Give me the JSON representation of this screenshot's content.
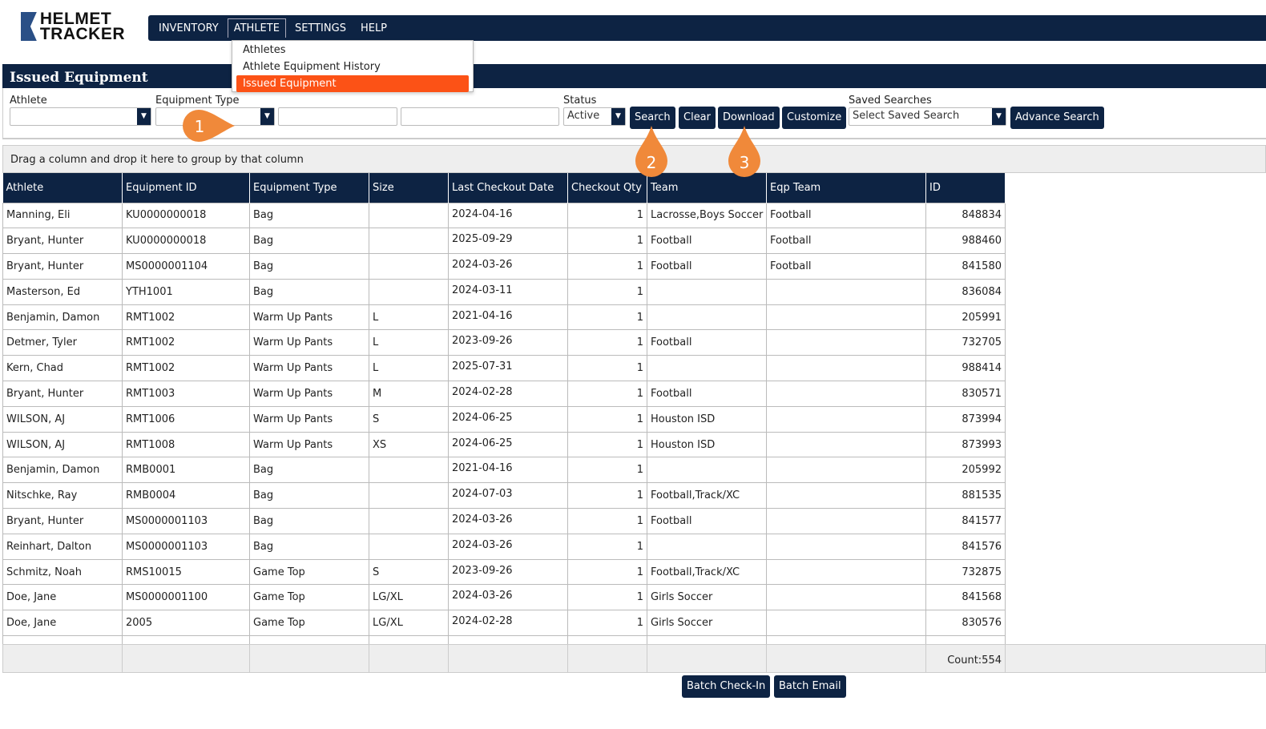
{
  "logo": {
    "line1": "HELMET",
    "line2": "TRACKER"
  },
  "nav": {
    "items": [
      "INVENTORY",
      "ATHLETE",
      "SETTINGS",
      "HELP"
    ],
    "active": "ATHLETE"
  },
  "menu": {
    "items": [
      "Athletes",
      "Athlete Equipment History",
      "Issued Equipment"
    ],
    "selected": "Issued Equipment"
  },
  "page": {
    "title": "Issued Equipment"
  },
  "filters": {
    "athlete_label": "Athlete",
    "equipment_type_label": "Equipment Type",
    "status_label": "Status",
    "status_value": "Active",
    "saved_label": "Saved Searches",
    "saved_value": "Select Saved Search"
  },
  "buttons": {
    "search": "Search",
    "clear": "Clear",
    "download": "Download",
    "customize": "Customize",
    "advance": "Advance Search",
    "batch_checkin": "Batch Check-In",
    "batch_email": "Batch Email"
  },
  "group_hint": "Drag a column and drop it here to group by that column",
  "table": {
    "columns": [
      "Athlete",
      "Equipment ID",
      "Equipment Type",
      "Size",
      "Last Checkout Date",
      "Checkout Qty",
      "Team",
      "Eqp Team",
      "ID"
    ],
    "rows": [
      [
        "Manning, Eli",
        "KU0000000018",
        "Bag",
        "",
        "2024-04-16",
        "1",
        "Lacrosse,Boys Soccer",
        "Football",
        "848834"
      ],
      [
        "Bryant, Hunter",
        "KU0000000018",
        "Bag",
        "",
        "2025-09-29",
        "1",
        "Football",
        "Football",
        "988460"
      ],
      [
        "Bryant, Hunter",
        "MS0000001104",
        "Bag",
        "",
        "2024-03-26",
        "1",
        "Football",
        "Football",
        "841580"
      ],
      [
        "Masterson, Ed",
        "YTH1001",
        "Bag",
        "",
        "2024-03-11",
        "1",
        "",
        "",
        "836084"
      ],
      [
        "Benjamin, Damon",
        "RMT1002",
        "Warm Up Pants",
        "L",
        "2021-04-16",
        "1",
        "",
        "",
        "205991"
      ],
      [
        "Detmer, Tyler",
        "RMT1002",
        "Warm Up Pants",
        "L",
        "2023-09-26",
        "1",
        "Football",
        "",
        "732705"
      ],
      [
        "Kern, Chad",
        "RMT1002",
        "Warm Up Pants",
        "L",
        "2025-07-31",
        "1",
        "",
        "",
        "988414"
      ],
      [
        "Bryant, Hunter",
        "RMT1003",
        "Warm Up Pants",
        "M",
        "2024-02-28",
        "1",
        "Football",
        "",
        "830571"
      ],
      [
        "WILSON, AJ",
        "RMT1006",
        "Warm Up Pants",
        "S",
        "2024-06-25",
        "1",
        "Houston ISD",
        "",
        "873994"
      ],
      [
        "WILSON, AJ",
        "RMT1008",
        "Warm Up Pants",
        "XS",
        "2024-06-25",
        "1",
        "Houston ISD",
        "",
        "873993"
      ],
      [
        "Benjamin, Damon",
        "RMB0001",
        "Bag",
        "",
        "2021-04-16",
        "1",
        "",
        "",
        "205992"
      ],
      [
        "Nitschke, Ray",
        "RMB0004",
        "Bag",
        "",
        "2024-07-03",
        "1",
        "Football,Track/XC",
        "",
        "881535"
      ],
      [
        "Bryant, Hunter",
        "MS0000001103",
        "Bag",
        "",
        "2024-03-26",
        "1",
        "Football",
        "",
        "841577"
      ],
      [
        "Reinhart, Dalton",
        "MS0000001103",
        "Bag",
        "",
        "2024-03-26",
        "1",
        "",
        "",
        "841576"
      ],
      [
        "Schmitz, Noah",
        "RMS10015",
        "Game Top",
        "S",
        "2023-09-26",
        "1",
        "Football,Track/XC",
        "",
        "732875"
      ],
      [
        "Doe, Jane",
        "MS0000001100",
        "Game Top",
        "LG/XL",
        "2024-03-26",
        "1",
        "Girls Soccer",
        "",
        "841568"
      ],
      [
        "Doe, Jane",
        "2005",
        "Game Top",
        "LG/XL",
        "2024-02-28",
        "1",
        "Girls Soccer",
        "",
        "830576"
      ]
    ],
    "count_label": "Count:554"
  },
  "callouts": [
    "1",
    "2",
    "3"
  ],
  "colors": {
    "navy": "#0d2343",
    "highlight": "#fc5216",
    "callout": "#f0893a"
  }
}
